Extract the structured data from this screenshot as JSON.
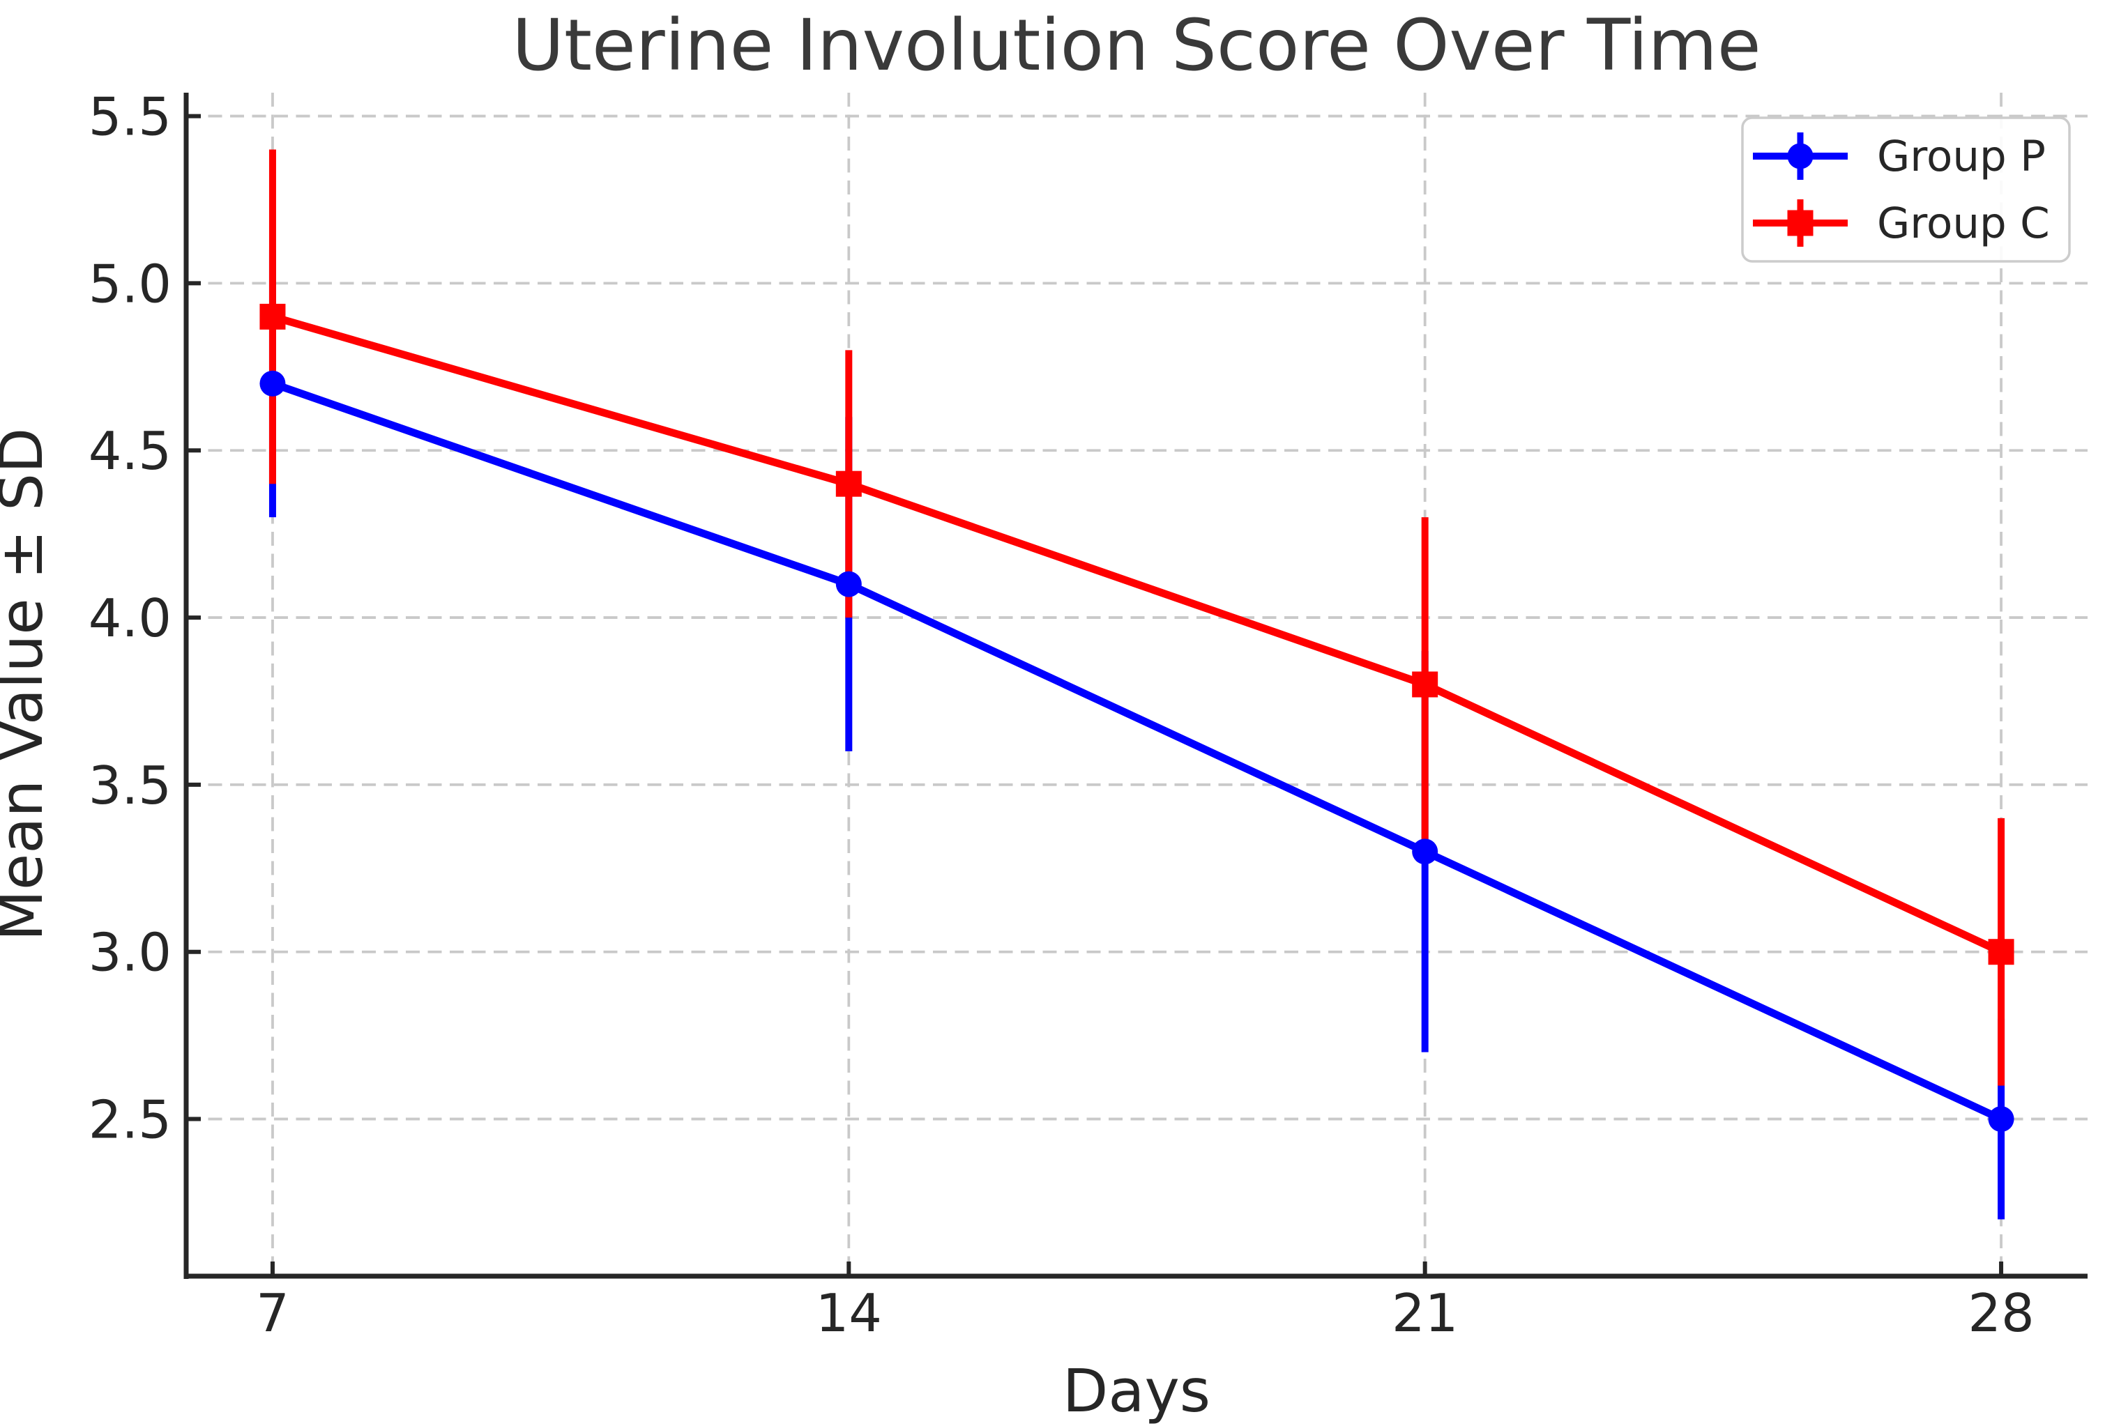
{
  "chart_data": {
    "type": "line",
    "title": "Uterine Involution Score Over Time",
    "xlabel": "Days",
    "ylabel": "Mean Value ± SD",
    "x": [
      7,
      14,
      21,
      28
    ],
    "xtick_labels": [
      "7",
      "14",
      "21",
      "28"
    ],
    "yticks": [
      5.5,
      5.0,
      4.5,
      4.0,
      3.5,
      3.0,
      2.5
    ],
    "ytick_labels": [
      "5.5",
      "5.0",
      "4.5",
      "4.0",
      "3.5",
      "3.0",
      "2.5"
    ],
    "xlim": [
      5.95,
      29.05
    ],
    "ylim": [
      2.03,
      5.57
    ],
    "grid": true,
    "grid_style": "dashed",
    "legend_position": "upper right",
    "series": [
      {
        "name": "Group P",
        "color": "#0000ff",
        "marker": "circle",
        "values": [
          4.7,
          4.1,
          3.3,
          2.5
        ],
        "sd": [
          0.4,
          0.5,
          0.6,
          0.3
        ]
      },
      {
        "name": "Group C",
        "color": "#ff0000",
        "marker": "square",
        "values": [
          4.9,
          4.4,
          3.8,
          3.0
        ],
        "sd": [
          0.5,
          0.4,
          0.5,
          0.4
        ]
      }
    ]
  },
  "style": {
    "background": "#ffffff",
    "grid_color": "#c9c9c9",
    "spine_color": "#262626",
    "tick_label_color": "#262626",
    "axis_label_color": "#262626",
    "title_color": "#3a3a3a",
    "legend_border_color": "#cccccc",
    "legend_background": "#ffffff",
    "series_blue": "#0000ff",
    "series_red": "#ff0000"
  }
}
